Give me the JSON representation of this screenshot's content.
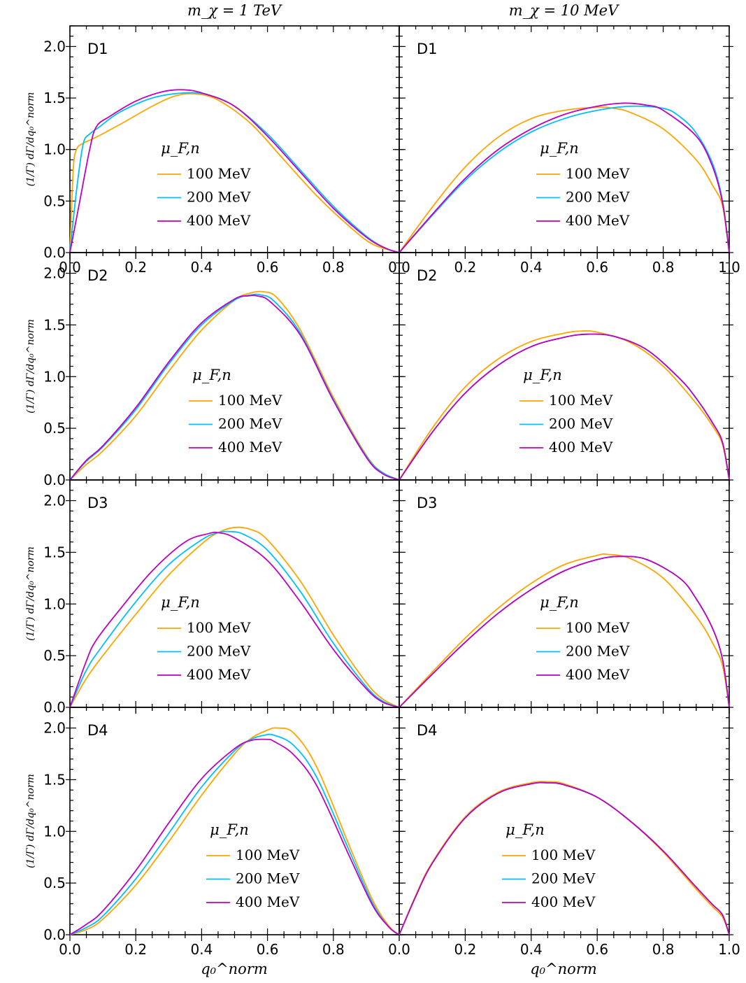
{
  "figure": {
    "column_titles": [
      "m_χ = 1 TeV",
      "m_χ = 10 MeV"
    ],
    "ylabel": "(1/Γ) dΓ/dq₀^norm",
    "xlabel": "q₀^norm",
    "legend_title": "μ_F,n",
    "colors": {
      "100 MeV": "#FFA500",
      "200 MeV": "#00BFFF",
      "400 MeV": "#BF00BF"
    }
  },
  "chart_data": [
    {
      "type": "line",
      "panel": "D1",
      "column": "m_χ = 1 TeV",
      "xlim": [
        0,
        1
      ],
      "ylim": [
        0,
        2.2
      ],
      "xticks": [
        "0.0",
        "0.2",
        "0.4",
        "0.6",
        "0.8",
        ""
      ],
      "yticks": [
        "0.0",
        "0.5",
        "1.0",
        "1.5",
        "2.0"
      ],
      "legend_title": "μ_F,n",
      "legend_position": "center-left",
      "series": [
        {
          "name": "100 MeV",
          "color": "#FFA500",
          "x": [
            0,
            0.01,
            0.02,
            0.04,
            0.08,
            0.15,
            0.25,
            0.32,
            0.38,
            0.45,
            0.55,
            0.65,
            0.75,
            0.85,
            0.92,
            1.0
          ],
          "y": [
            0,
            0.8,
            1.0,
            1.06,
            1.12,
            1.24,
            1.42,
            1.52,
            1.54,
            1.48,
            1.25,
            0.9,
            0.55,
            0.25,
            0.08,
            0
          ]
        },
        {
          "name": "200 MeV",
          "color": "#00BFFF",
          "x": [
            0,
            0.02,
            0.04,
            0.06,
            0.09,
            0.15,
            0.25,
            0.35,
            0.42,
            0.5,
            0.6,
            0.7,
            0.8,
            0.9,
            0.96,
            1.0
          ],
          "y": [
            0,
            0.6,
            1.05,
            1.15,
            1.22,
            1.36,
            1.5,
            1.55,
            1.53,
            1.42,
            1.15,
            0.8,
            0.45,
            0.16,
            0.04,
            0
          ]
        },
        {
          "name": "400 MeV",
          "color": "#BF00BF",
          "x": [
            0,
            0.03,
            0.06,
            0.08,
            0.12,
            0.2,
            0.28,
            0.34,
            0.4,
            0.5,
            0.6,
            0.7,
            0.8,
            0.9,
            0.96,
            1.0
          ],
          "y": [
            0,
            0.5,
            1.0,
            1.22,
            1.32,
            1.47,
            1.56,
            1.58,
            1.55,
            1.42,
            1.13,
            0.78,
            0.43,
            0.15,
            0.04,
            0
          ]
        }
      ]
    },
    {
      "type": "line",
      "panel": "D1",
      "column": "m_χ = 10 MeV",
      "xlim": [
        0,
        1
      ],
      "ylim": [
        0,
        2.2
      ],
      "xticks": [
        "0.0",
        "0.2",
        "0.4",
        "0.6",
        "0.8",
        "1.0"
      ],
      "yticks": [
        "",
        "",
        "",
        "",
        ""
      ],
      "legend_title": "μ_F,n",
      "legend_position": "center-right",
      "series": [
        {
          "name": "100 MeV",
          "color": "#FFA500",
          "x": [
            0,
            0.1,
            0.2,
            0.3,
            0.4,
            0.5,
            0.6,
            0.65,
            0.7,
            0.8,
            0.9,
            0.95,
            0.98,
            1.0
          ],
          "y": [
            0,
            0.44,
            0.83,
            1.12,
            1.3,
            1.38,
            1.41,
            1.4,
            1.36,
            1.2,
            0.9,
            0.65,
            0.45,
            0
          ]
        },
        {
          "name": "200 MeV",
          "color": "#00BFFF",
          "x": [
            0,
            0.1,
            0.2,
            0.3,
            0.4,
            0.5,
            0.6,
            0.7,
            0.8,
            0.85,
            0.9,
            0.95,
            0.98,
            1.0
          ],
          "y": [
            0,
            0.36,
            0.7,
            0.97,
            1.17,
            1.3,
            1.38,
            1.42,
            1.4,
            1.32,
            1.16,
            0.86,
            0.5,
            0
          ]
        },
        {
          "name": "400 MeV",
          "color": "#BF00BF",
          "x": [
            0,
            0.1,
            0.2,
            0.3,
            0.4,
            0.5,
            0.6,
            0.68,
            0.75,
            0.8,
            0.9,
            0.95,
            0.98,
            1.0
          ],
          "y": [
            0,
            0.37,
            0.72,
            1.0,
            1.2,
            1.34,
            1.42,
            1.45,
            1.43,
            1.38,
            1.13,
            0.83,
            0.48,
            0
          ]
        }
      ]
    },
    {
      "type": "line",
      "panel": "D2",
      "column": "m_χ = 1 TeV",
      "xlim": [
        0,
        1
      ],
      "ylim": [
        0,
        2.2
      ],
      "xticks": [
        "",
        "",
        "",
        "",
        "",
        ""
      ],
      "yticks": [
        "0.0",
        "0.5",
        "1.0",
        "1.5",
        "2.0"
      ],
      "legend_title": "μ_F,n",
      "legend_position": "center",
      "series": [
        {
          "name": "100 MeV",
          "color": "#FFA500",
          "x": [
            0,
            0.05,
            0.1,
            0.2,
            0.3,
            0.4,
            0.5,
            0.55,
            0.59,
            0.63,
            0.7,
            0.8,
            0.9,
            0.95,
            1.0
          ],
          "y": [
            0,
            0.15,
            0.28,
            0.62,
            1.05,
            1.45,
            1.74,
            1.81,
            1.82,
            1.76,
            1.45,
            0.8,
            0.24,
            0.07,
            0
          ]
        },
        {
          "name": "200 MeV",
          "color": "#00BFFF",
          "x": [
            0,
            0.05,
            0.1,
            0.2,
            0.3,
            0.4,
            0.5,
            0.55,
            0.58,
            0.62,
            0.7,
            0.8,
            0.9,
            0.95,
            1.0
          ],
          "y": [
            0,
            0.18,
            0.32,
            0.68,
            1.12,
            1.5,
            1.74,
            1.79,
            1.79,
            1.73,
            1.42,
            0.78,
            0.23,
            0.07,
            0
          ]
        },
        {
          "name": "400 MeV",
          "color": "#BF00BF",
          "x": [
            0,
            0.05,
            0.1,
            0.2,
            0.3,
            0.4,
            0.5,
            0.54,
            0.57,
            0.61,
            0.7,
            0.8,
            0.9,
            0.95,
            1.0
          ],
          "y": [
            0,
            0.19,
            0.33,
            0.7,
            1.14,
            1.52,
            1.75,
            1.78,
            1.78,
            1.72,
            1.4,
            0.77,
            0.22,
            0.06,
            0
          ]
        }
      ]
    },
    {
      "type": "line",
      "panel": "D2",
      "column": "m_χ = 10 MeV",
      "xlim": [
        0,
        1
      ],
      "ylim": [
        0,
        2.2
      ],
      "xticks": [
        "",
        "",
        "",
        "",
        "",
        ""
      ],
      "yticks": [
        "",
        "",
        "",
        "",
        ""
      ],
      "legend_title": "μ_F,n",
      "legend_position": "center",
      "series": [
        {
          "name": "100 MeV",
          "color": "#FFA500",
          "x": [
            0,
            0.1,
            0.2,
            0.3,
            0.4,
            0.5,
            0.55,
            0.6,
            0.7,
            0.8,
            0.9,
            0.95,
            0.98,
            1.0
          ],
          "y": [
            0,
            0.5,
            0.9,
            1.17,
            1.34,
            1.42,
            1.44,
            1.43,
            1.33,
            1.1,
            0.74,
            0.52,
            0.34,
            0
          ]
        },
        {
          "name": "200 MeV",
          "color": "#00BFFF",
          "x": [
            0,
            0.1,
            0.2,
            0.3,
            0.4,
            0.5,
            0.57,
            0.65,
            0.75,
            0.85,
            0.9,
            0.95,
            0.98,
            1.0
          ],
          "y": [
            0,
            0.46,
            0.84,
            1.11,
            1.29,
            1.38,
            1.41,
            1.39,
            1.26,
            0.98,
            0.79,
            0.55,
            0.36,
            0
          ]
        },
        {
          "name": "400 MeV",
          "color": "#BF00BF",
          "x": [
            0,
            0.1,
            0.2,
            0.3,
            0.4,
            0.5,
            0.57,
            0.65,
            0.75,
            0.85,
            0.9,
            0.95,
            0.98,
            1.0
          ],
          "y": [
            0,
            0.46,
            0.84,
            1.11,
            1.29,
            1.38,
            1.41,
            1.39,
            1.26,
            0.98,
            0.79,
            0.55,
            0.36,
            0
          ]
        }
      ]
    },
    {
      "type": "line",
      "panel": "D3",
      "column": "m_χ = 1 TeV",
      "xlim": [
        0,
        1
      ],
      "ylim": [
        0,
        2.2
      ],
      "xticks": [
        "",
        "",
        "",
        "",
        "",
        ""
      ],
      "yticks": [
        "0.0",
        "0.5",
        "1.0",
        "1.5",
        "2.0"
      ],
      "legend_title": "μ_F,n",
      "legend_position": "center-left",
      "series": [
        {
          "name": "100 MeV",
          "color": "#FFA500",
          "x": [
            0,
            0.05,
            0.1,
            0.2,
            0.3,
            0.4,
            0.45,
            0.5,
            0.55,
            0.6,
            0.7,
            0.8,
            0.9,
            0.95,
            1.0
          ],
          "y": [
            0,
            0.28,
            0.5,
            0.9,
            1.28,
            1.58,
            1.69,
            1.74,
            1.72,
            1.62,
            1.22,
            0.7,
            0.24,
            0.08,
            0
          ]
        },
        {
          "name": "200 MeV",
          "color": "#00BFFF",
          "x": [
            0,
            0.05,
            0.1,
            0.2,
            0.3,
            0.4,
            0.45,
            0.49,
            0.53,
            0.6,
            0.7,
            0.8,
            0.9,
            0.95,
            1.0
          ],
          "y": [
            0,
            0.36,
            0.6,
            1.02,
            1.38,
            1.62,
            1.69,
            1.7,
            1.67,
            1.52,
            1.12,
            0.62,
            0.2,
            0.06,
            0
          ]
        },
        {
          "name": "400 MeV",
          "color": "#BF00BF",
          "x": [
            0,
            0.05,
            0.08,
            0.15,
            0.25,
            0.35,
            0.42,
            0.45,
            0.5,
            0.6,
            0.7,
            0.8,
            0.9,
            0.95,
            1.0
          ],
          "y": [
            0,
            0.45,
            0.65,
            0.94,
            1.32,
            1.6,
            1.68,
            1.69,
            1.64,
            1.42,
            1.02,
            0.56,
            0.18,
            0.05,
            0
          ]
        }
      ]
    },
    {
      "type": "line",
      "panel": "D3",
      "column": "m_χ = 10 MeV",
      "xlim": [
        0,
        1
      ],
      "ylim": [
        0,
        2.2
      ],
      "xticks": [
        "",
        "",
        "",
        "",
        "",
        ""
      ],
      "yticks": [
        "",
        "",
        "",
        "",
        ""
      ],
      "legend_title": "μ_F,n",
      "legend_position": "center-right",
      "series": [
        {
          "name": "100 MeV",
          "color": "#FFA500",
          "x": [
            0,
            0.1,
            0.2,
            0.3,
            0.4,
            0.5,
            0.6,
            0.63,
            0.7,
            0.8,
            0.9,
            0.95,
            0.98,
            1.0
          ],
          "y": [
            0,
            0.34,
            0.67,
            0.96,
            1.2,
            1.38,
            1.47,
            1.48,
            1.44,
            1.25,
            0.88,
            0.62,
            0.4,
            0
          ]
        },
        {
          "name": "200 MeV",
          "color": "#00BFFF",
          "x": [
            0,
            0.1,
            0.2,
            0.3,
            0.4,
            0.5,
            0.6,
            0.67,
            0.75,
            0.85,
            0.9,
            0.95,
            0.98,
            1.0
          ],
          "y": [
            0,
            0.32,
            0.63,
            0.91,
            1.14,
            1.32,
            1.43,
            1.46,
            1.43,
            1.25,
            1.05,
            0.76,
            0.46,
            0
          ]
        },
        {
          "name": "400 MeV",
          "color": "#BF00BF",
          "x": [
            0,
            0.1,
            0.2,
            0.3,
            0.4,
            0.5,
            0.6,
            0.67,
            0.75,
            0.85,
            0.9,
            0.95,
            0.98,
            1.0
          ],
          "y": [
            0,
            0.32,
            0.63,
            0.91,
            1.14,
            1.32,
            1.43,
            1.46,
            1.43,
            1.25,
            1.05,
            0.76,
            0.46,
            0
          ]
        }
      ]
    },
    {
      "type": "line",
      "panel": "D4",
      "column": "m_χ = 1 TeV",
      "xlim": [
        0,
        1
      ],
      "ylim": [
        0,
        2.2
      ],
      "xticks": [
        "0.0",
        "0.2",
        "0.4",
        "0.6",
        "0.8",
        ""
      ],
      "yticks": [
        "0.0",
        "0.5",
        "1.0",
        "1.5",
        "2.0"
      ],
      "legend_title": "μ_F,n",
      "legend_position": "center",
      "series": [
        {
          "name": "100 MeV",
          "color": "#FFA500",
          "x": [
            0,
            0.05,
            0.1,
            0.2,
            0.3,
            0.4,
            0.5,
            0.55,
            0.6,
            0.63,
            0.68,
            0.75,
            0.85,
            0.92,
            0.97,
            1.0
          ],
          "y": [
            0,
            0.05,
            0.15,
            0.48,
            0.9,
            1.35,
            1.75,
            1.9,
            1.98,
            2.0,
            1.95,
            1.62,
            0.85,
            0.33,
            0.08,
            0
          ]
        },
        {
          "name": "200 MeV",
          "color": "#00BFFF",
          "x": [
            0,
            0.05,
            0.1,
            0.2,
            0.3,
            0.4,
            0.5,
            0.55,
            0.59,
            0.62,
            0.68,
            0.75,
            0.85,
            0.92,
            0.97,
            1.0
          ],
          "y": [
            0,
            0.07,
            0.18,
            0.54,
            0.98,
            1.43,
            1.78,
            1.89,
            1.93,
            1.93,
            1.83,
            1.52,
            0.8,
            0.3,
            0.07,
            0
          ]
        },
        {
          "name": "400 MeV",
          "color": "#BF00BF",
          "x": [
            0,
            0.05,
            0.1,
            0.2,
            0.3,
            0.4,
            0.5,
            0.55,
            0.6,
            0.62,
            0.68,
            0.75,
            0.85,
            0.92,
            0.97,
            1.0
          ],
          "y": [
            0,
            0.1,
            0.23,
            0.62,
            1.08,
            1.51,
            1.8,
            1.88,
            1.89,
            1.87,
            1.74,
            1.44,
            0.75,
            0.28,
            0.07,
            0
          ]
        }
      ]
    },
    {
      "type": "line",
      "panel": "D4",
      "column": "m_χ = 10 MeV",
      "xlim": [
        0,
        1
      ],
      "ylim": [
        0,
        2.2
      ],
      "xticks": [
        "0.0",
        "0.2",
        "0.4",
        "0.6",
        "0.8",
        "1.0"
      ],
      "yticks": [
        "",
        "",
        "",
        "",
        ""
      ],
      "legend_title": "μ_F,n",
      "legend_position": "center",
      "series": [
        {
          "name": "100 MeV",
          "color": "#FFA500",
          "x": [
            0,
            0.05,
            0.1,
            0.2,
            0.3,
            0.4,
            0.45,
            0.5,
            0.6,
            0.7,
            0.8,
            0.9,
            0.95,
            0.98,
            1.0
          ],
          "y": [
            0,
            0.38,
            0.7,
            1.14,
            1.38,
            1.47,
            1.48,
            1.46,
            1.33,
            1.1,
            0.8,
            0.44,
            0.27,
            0.17,
            0
          ]
        },
        {
          "name": "200 MeV",
          "color": "#00BFFF",
          "x": [
            0,
            0.05,
            0.1,
            0.2,
            0.3,
            0.4,
            0.45,
            0.5,
            0.6,
            0.7,
            0.8,
            0.9,
            0.95,
            0.98,
            1.0
          ],
          "y": [
            0,
            0.37,
            0.69,
            1.13,
            1.37,
            1.46,
            1.47,
            1.45,
            1.33,
            1.1,
            0.81,
            0.46,
            0.29,
            0.19,
            0
          ]
        },
        {
          "name": "400 MeV",
          "color": "#BF00BF",
          "x": [
            0,
            0.05,
            0.1,
            0.2,
            0.3,
            0.4,
            0.45,
            0.5,
            0.6,
            0.7,
            0.8,
            0.9,
            0.95,
            0.98,
            1.0
          ],
          "y": [
            0,
            0.37,
            0.69,
            1.13,
            1.37,
            1.46,
            1.47,
            1.45,
            1.33,
            1.1,
            0.81,
            0.46,
            0.29,
            0.19,
            0
          ]
        }
      ]
    }
  ]
}
